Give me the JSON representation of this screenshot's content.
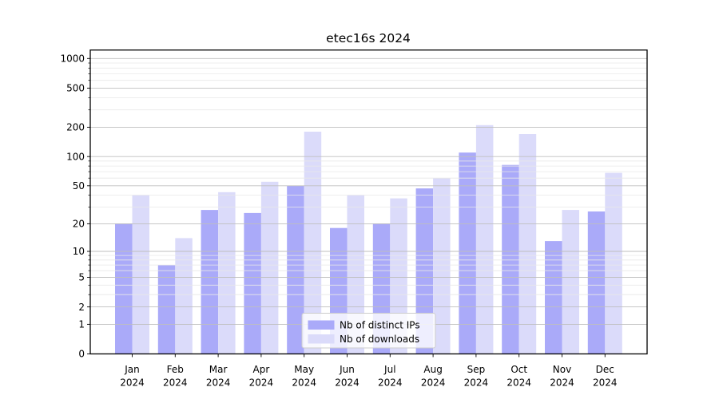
{
  "chart_data": {
    "type": "bar",
    "title": "etec16s 2024",
    "xlabel": "",
    "ylabel": "",
    "y_scale": "log1p",
    "ylim": [
      0,
      1220
    ],
    "grid": true,
    "legend_position": "lower-center",
    "y_major_ticks": [
      0,
      1,
      2,
      5,
      10,
      20,
      50,
      100,
      200,
      500,
      1000
    ],
    "y_minor_ticks": [
      3,
      4,
      6,
      7,
      8,
      9,
      30,
      40,
      60,
      70,
      80,
      90,
      300,
      400,
      600,
      700,
      800,
      900
    ],
    "categories": [
      "Jan",
      "Feb",
      "Mar",
      "Apr",
      "May",
      "Jun",
      "Jul",
      "Aug",
      "Sep",
      "Oct",
      "Nov",
      "Dec"
    ],
    "x_year_label": "2024",
    "series": [
      {
        "name": "Nb of distinct IPs",
        "color": "#aaaaf9",
        "values": [
          20,
          7,
          28,
          26,
          50,
          18,
          20,
          47,
          110,
          82,
          13,
          27
        ]
      },
      {
        "name": "Nb of downloads",
        "color": "#dbdbfa",
        "values": [
          40,
          14,
          43,
          55,
          180,
          40,
          37,
          60,
          210,
          170,
          28,
          68
        ]
      }
    ],
    "colors": {
      "background": "#ffffff",
      "axis": "#000000",
      "text": "#000000",
      "grid_major": "#bfbfbf",
      "grid_minor": "#e8e8e8"
    }
  }
}
